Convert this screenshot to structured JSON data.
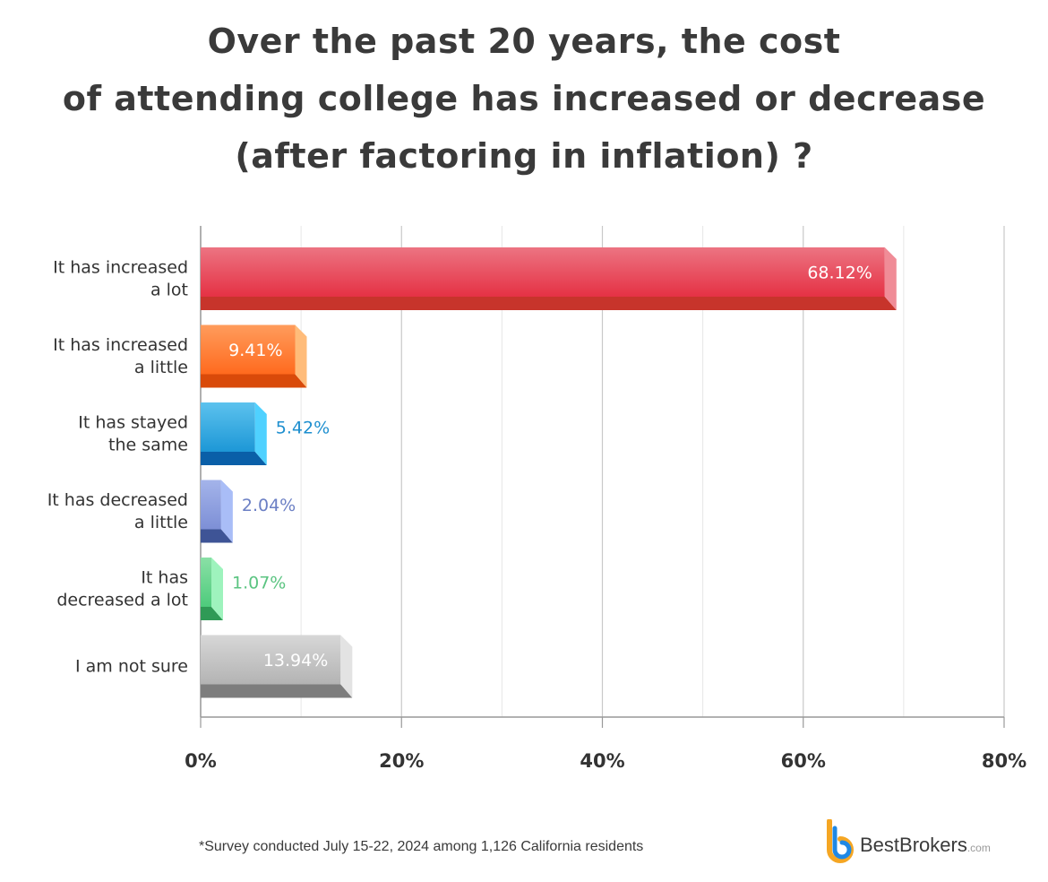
{
  "chart_data": {
    "type": "bar",
    "orientation": "horizontal",
    "title_lines": [
      "Over the past 20 years, the cost",
      "of attending college has increased or decrease",
      "(after factoring in inflation) ?"
    ],
    "categories": [
      [
        "It has increased",
        "a lot"
      ],
      [
        "It has increased",
        "a little"
      ],
      [
        "It has stayed",
        "the same"
      ],
      [
        "It has decreased",
        "a little"
      ],
      [
        "It has",
        "decreased a lot"
      ],
      [
        "I am not sure"
      ]
    ],
    "values": [
      68.12,
      9.41,
      5.42,
      2.04,
      1.07,
      13.94
    ],
    "value_labels": [
      "68.12%",
      "9.41%",
      "5.42%",
      "2.04%",
      "1.07%",
      "13.94%"
    ],
    "label_inside": [
      true,
      true,
      false,
      false,
      false,
      true
    ],
    "colors": [
      {
        "top": "#ec7482",
        "mid": "#e53144",
        "bottom": "#c7342b",
        "side": "#f08c97",
        "label": "#ffffff"
      },
      {
        "top": "#ff9c5c",
        "mid": "#ff6a1e",
        "bottom": "#d94a0a",
        "side": "#ffbc7a",
        "label": "#ffffff"
      },
      {
        "top": "#5cc2ee",
        "mid": "#1d97d6",
        "bottom": "#0a5fa8",
        "side": "#4fd1ff",
        "label": "#1e8fcf"
      },
      {
        "top": "#a4b4ea",
        "mid": "#7d8fd6",
        "bottom": "#3e5496",
        "side": "#a9bdf7",
        "label": "#6b7fc4"
      },
      {
        "top": "#8ae0a6",
        "mid": "#4ecb7c",
        "bottom": "#2f9a56",
        "side": "#9ef3bd",
        "label": "#5bc481"
      },
      {
        "top": "#d7d7d7",
        "mid": "#b3b3b3",
        "bottom": "#7d7d7d",
        "side": "#e3e3e3",
        "label": "#ffffff"
      }
    ],
    "xlim": [
      0,
      80
    ],
    "x_ticks": [
      0,
      20,
      40,
      60,
      80
    ],
    "x_tick_labels": [
      "0%",
      "20%",
      "40%",
      "60%",
      "80%"
    ],
    "grid": true
  },
  "footnote": "*Survey conducted July 15-22, 2024 among 1,126 California residents",
  "logo": {
    "name": "BestBrokers",
    "tld": ".com",
    "colors": {
      "orange": "#f5a623",
      "blue": "#1e88e5"
    }
  }
}
